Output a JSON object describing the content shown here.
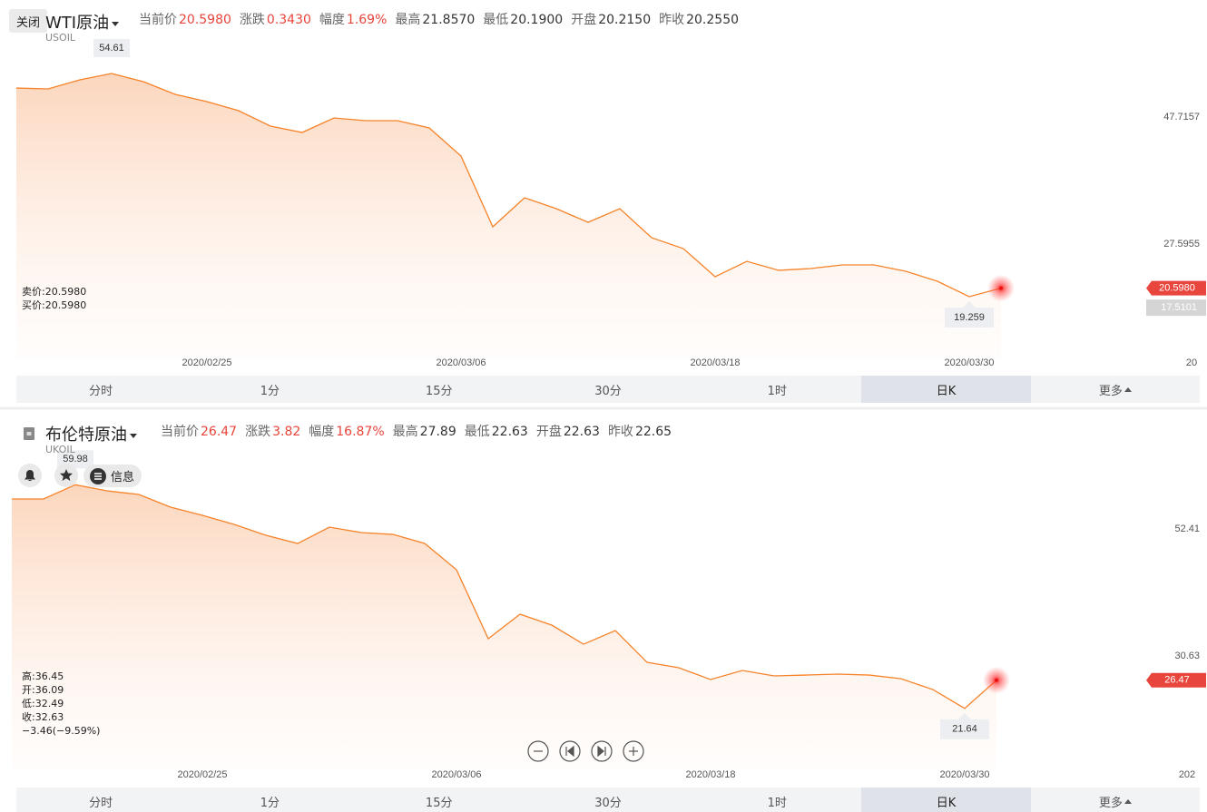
{
  "chart_data": [
    {
      "type": "area",
      "color": "#f5832a",
      "categories": [
        null,
        null,
        null,
        null,
        null,
        null,
        "2020/02/25",
        null,
        null,
        null,
        null,
        null,
        null,
        null,
        "2020/03/06",
        null,
        null,
        null,
        null,
        null,
        null,
        null,
        "2020/03/18",
        null,
        null,
        null,
        null,
        null,
        null,
        null,
        "2020/03/30",
        null,
        null,
        null,
        null,
        null,
        null,
        "20"
      ],
      "values": [
        52.31,
        52.17,
        53.61,
        54.61,
        53.32,
        51.31,
        50.16,
        48.72,
        46.28,
        45.27,
        47.57,
        47.14,
        47.14,
        45.99,
        41.53,
        30.32,
        34.92,
        33.2,
        31.04,
        33.2,
        28.6,
        26.87,
        22.42,
        24.86,
        23.43,
        23.71,
        24.29,
        24.29,
        23.28,
        21.7,
        19.259,
        20.598,
        null,
        null,
        null,
        null,
        null,
        null
      ],
      "ylim": [
        9.48,
        60.51
      ],
      "yticks": [
        47.7157,
        27.5955,
        17.5101
      ]
    },
    {
      "type": "area",
      "color": "#f5832a",
      "categories": [
        null,
        null,
        null,
        null,
        null,
        null,
        "2020/02/25",
        null,
        null,
        null,
        null,
        null,
        null,
        null,
        "2020/03/06",
        null,
        null,
        null,
        null,
        null,
        null,
        null,
        "2020/03/18",
        null,
        null,
        null,
        null,
        null,
        null,
        null,
        "2020/03/30",
        null,
        null,
        null,
        null,
        null,
        null,
        "202"
      ],
      "values": [
        57.54,
        57.54,
        59.98,
        58.94,
        58.32,
        56.14,
        54.74,
        53.19,
        51.32,
        49.92,
        52.72,
        51.79,
        51.47,
        49.92,
        45.41,
        33.59,
        37.79,
        35.92,
        32.65,
        34.99,
        29.54,
        28.61,
        26.59,
        28.14,
        27.21,
        27.36,
        27.52,
        27.36,
        26.73,
        24.87,
        21.64,
        26.47,
        null,
        null,
        null,
        null,
        null,
        null
      ],
      "ylim": [
        11.19,
        66.1
      ],
      "yticks": [
        52.41,
        30.63
      ]
    }
  ],
  "ui": {
    "close": "关闭",
    "info_button": "信息",
    "panels": [
      {
        "title": "WTI原油",
        "code": "USOIL",
        "stats": [
          {
            "label": "当前价",
            "value": "20.5980"
          },
          {
            "label": "涨跌",
            "value": "0.3430"
          },
          {
            "label": "幅度",
            "value": "1.69%"
          },
          {
            "label": "最高",
            "value": "21.8570"
          },
          {
            "label": "最低",
            "value": "20.1900"
          },
          {
            "label": "开盘",
            "value": "20.2150"
          },
          {
            "label": "昨收",
            "value": "20.2550"
          }
        ],
        "info": [
          "卖价:20.5980",
          "买价:20.5980"
        ],
        "tabs": [
          "分时",
          "1分",
          "15分",
          "30分",
          "1时",
          "日K",
          "更多"
        ]
      },
      {
        "title": "布伦特原油",
        "code": "UKOIL",
        "stats": [
          {
            "label": "当前价",
            "value": "26.47"
          },
          {
            "label": "涨跌",
            "value": "3.82"
          },
          {
            "label": "幅度",
            "value": "16.87%"
          },
          {
            "label": "最高",
            "value": "27.89"
          },
          {
            "label": "最低",
            "value": "22.63"
          },
          {
            "label": "开盘",
            "value": "22.63"
          },
          {
            "label": "昨收",
            "value": "22.65"
          }
        ],
        "info": [
          "高:36.45",
          "开:36.09",
          "低:32.49",
          "收:32.63",
          "−3.46(−9.59%)"
        ],
        "tabs": [
          "分时",
          "1分",
          "15分",
          "30分",
          "1时",
          "日K",
          "更多"
        ]
      }
    ]
  }
}
